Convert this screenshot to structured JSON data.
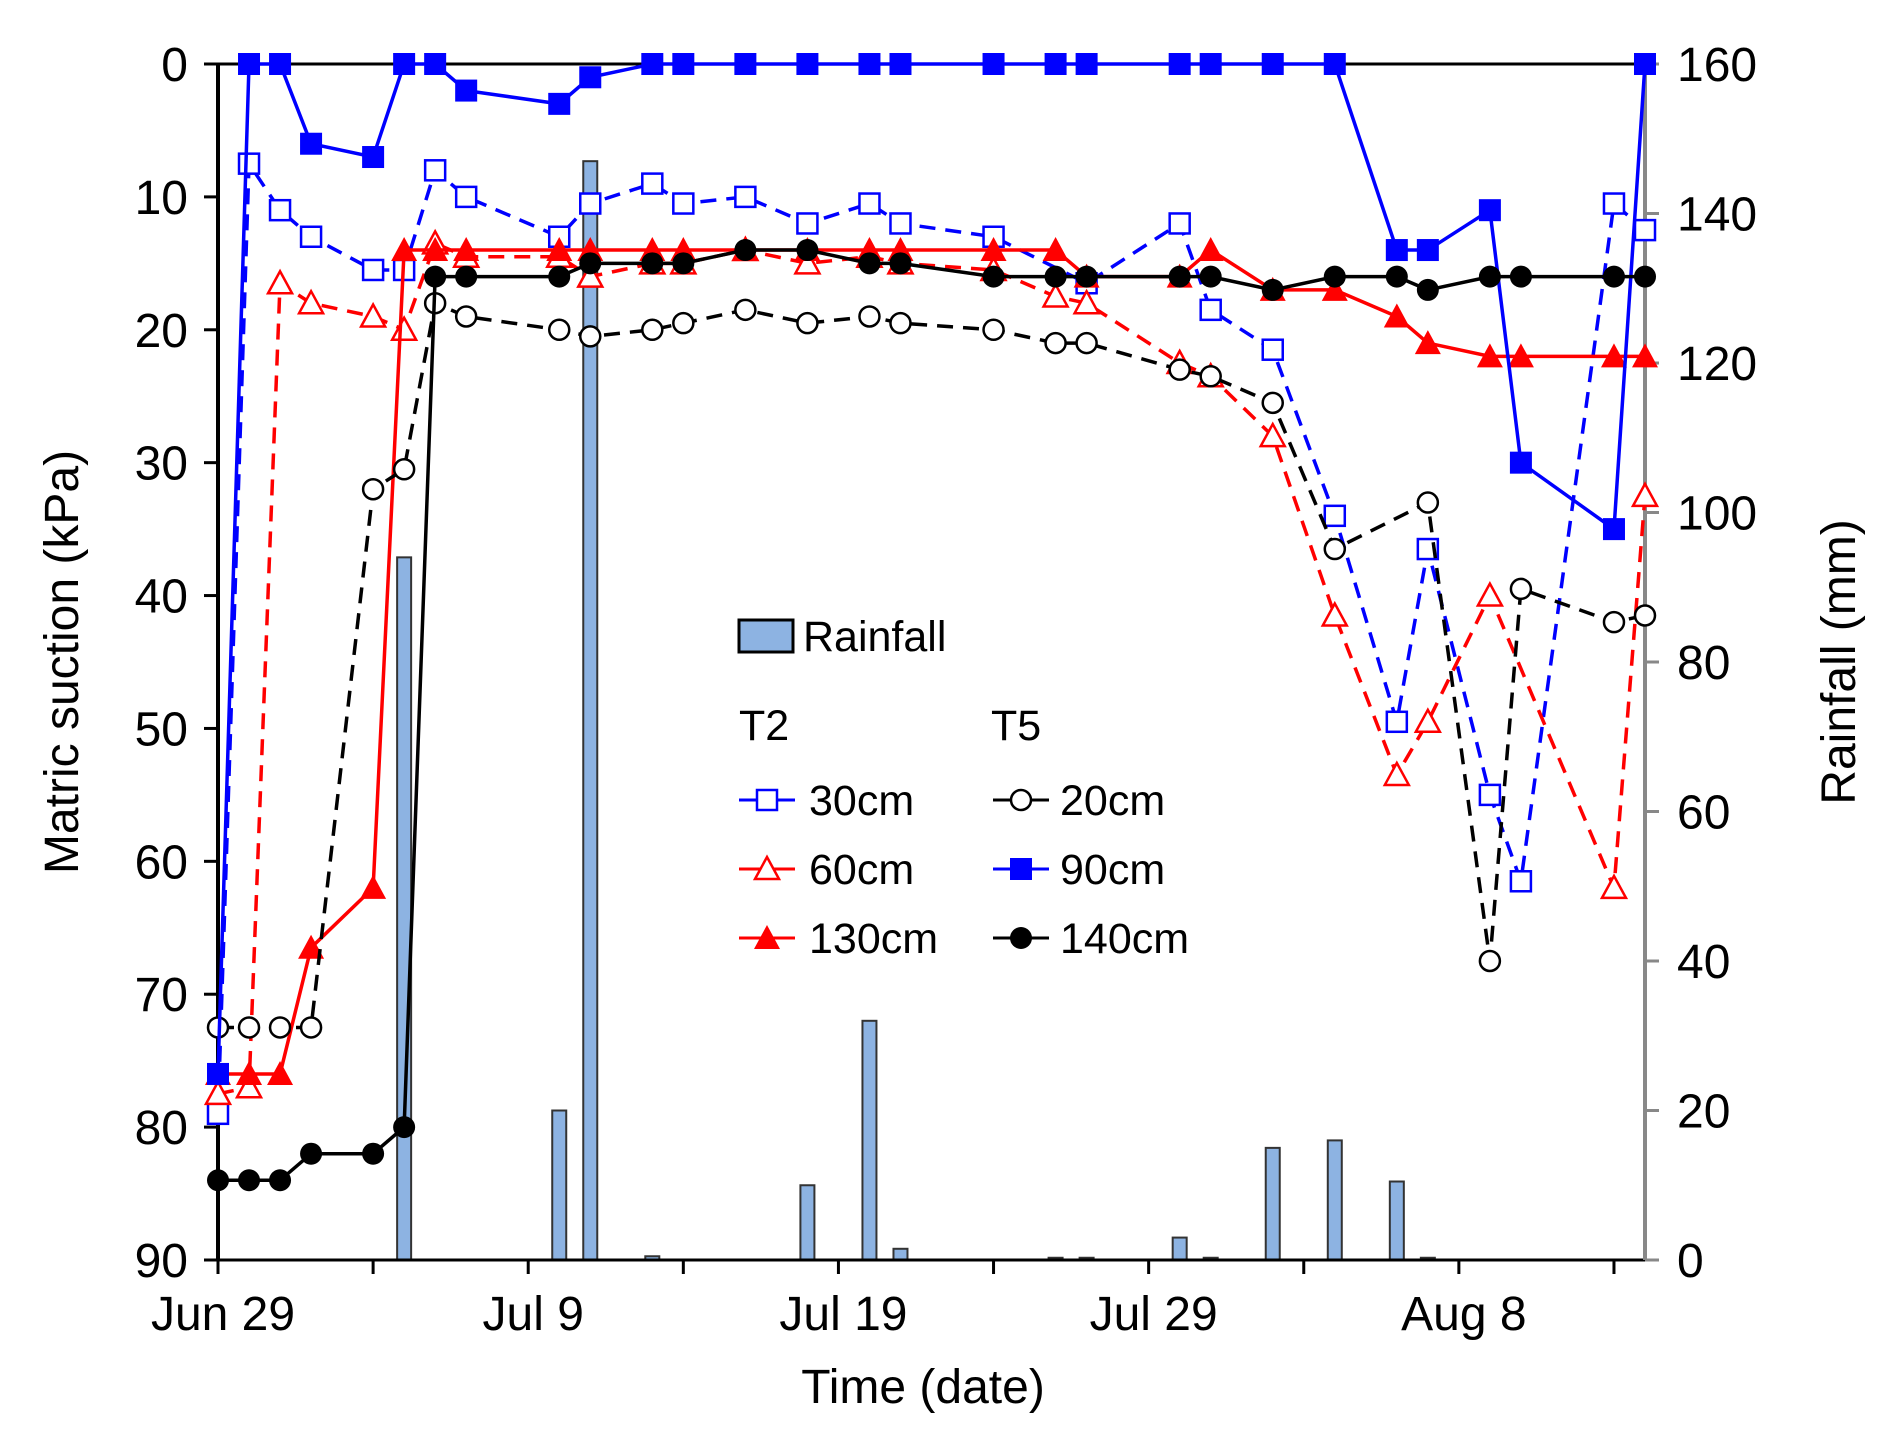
{
  "chart_data": {
    "type": "line",
    "xlabel": "Time (date)",
    "ylabel": "Matric suction (kPa)",
    "y2label": "Rainfall (mm)",
    "ylim": [
      90,
      0
    ],
    "y2lim": [
      0,
      160
    ],
    "xlim_days": [
      0,
      46
    ],
    "x_unit": "days since Jun 29",
    "yticks": [
      0,
      10,
      20,
      30,
      40,
      50,
      60,
      70,
      80,
      90
    ],
    "y2ticks": [
      0,
      20,
      40,
      60,
      80,
      100,
      120,
      140,
      160
    ],
    "xtick_days": [
      0,
      5,
      10,
      15,
      20,
      25,
      30,
      35,
      40,
      45
    ],
    "xtick_labels": [
      {
        "day": 0,
        "label": "Jun 29"
      },
      {
        "day": 10,
        "label": "Jul 9"
      },
      {
        "day": 20,
        "label": "Jul 19"
      },
      {
        "day": 30,
        "label": "Jul 29"
      },
      {
        "day": 40,
        "label": "Aug 8"
      }
    ],
    "legend": {
      "rainfall": "Rainfall",
      "group1": "T2",
      "group2": "T5",
      "placement": "center"
    },
    "rainfall": {
      "name": "Rainfall",
      "color": "#8db3e2",
      "days": [
        6,
        11,
        12,
        14,
        19,
        21,
        22,
        27,
        28,
        31,
        32,
        34,
        36,
        38,
        39
      ],
      "values": [
        94,
        20,
        147,
        0.5,
        10,
        32,
        1.5,
        0.3,
        0.3,
        3,
        0.3,
        15,
        16,
        10.5,
        0.3
      ]
    },
    "series": [
      {
        "name": "30cm",
        "group": "T2",
        "color": "#0000ff",
        "marker": "square-open",
        "dash": true,
        "x": [
          0,
          1,
          2,
          3,
          5,
          6,
          7,
          8,
          11,
          12,
          14,
          15,
          17,
          19,
          21,
          22,
          25,
          28,
          31,
          32,
          34,
          36,
          38,
          39,
          41,
          42,
          45,
          46
        ],
        "y": [
          79,
          7.5,
          11,
          13,
          15.5,
          15.5,
          8,
          10,
          13,
          10.5,
          9,
          10.5,
          10,
          12,
          10.5,
          12,
          13,
          16.5,
          12,
          18.5,
          21.5,
          34,
          49.5,
          36.5,
          55,
          61.5,
          10.5,
          12.5
        ]
      },
      {
        "name": "60cm",
        "group": "T2",
        "color": "#ff0000",
        "marker": "triangle-open",
        "dash": true,
        "x": [
          0,
          1,
          2,
          3,
          5,
          6,
          7,
          8,
          11,
          12,
          14,
          15,
          17,
          19,
          21,
          22,
          25,
          27,
          28,
          31,
          32,
          34,
          36,
          38,
          39,
          41,
          45,
          46
        ],
        "y": [
          77.5,
          77,
          16.5,
          18,
          19,
          20,
          13.5,
          14.5,
          14.5,
          16,
          15,
          15,
          14,
          15,
          14.5,
          15,
          15.5,
          17.5,
          18,
          22.5,
          23.5,
          28,
          41.5,
          53.5,
          49.5,
          40,
          62,
          32.5
        ]
      },
      {
        "name": "130cm",
        "group": "T2",
        "color": "#ff0000",
        "marker": "triangle-filled",
        "dash": false,
        "x": [
          0,
          1,
          2,
          3,
          5,
          6,
          7,
          8,
          11,
          12,
          14,
          15,
          17,
          19,
          21,
          22,
          25,
          27,
          28,
          31,
          32,
          34,
          36,
          38,
          39,
          41,
          42,
          45,
          46
        ],
        "y": [
          76,
          76,
          76,
          66.5,
          62,
          14,
          14,
          14,
          14,
          14,
          14,
          14,
          14,
          14,
          14,
          14,
          14,
          14,
          16,
          16,
          14,
          17,
          17,
          19,
          21,
          22,
          22,
          22,
          22
        ]
      },
      {
        "name": "20cm",
        "group": "T5",
        "color": "#000000",
        "marker": "circle-open",
        "dash": true,
        "x": [
          0,
          1,
          2,
          3,
          5,
          6,
          7,
          8,
          11,
          12,
          14,
          15,
          17,
          19,
          21,
          22,
          25,
          27,
          28,
          31,
          32,
          34,
          36,
          39,
          41,
          42,
          45,
          46
        ],
        "y": [
          72.5,
          72.5,
          72.5,
          72.5,
          32,
          30.5,
          18,
          19,
          20,
          20.5,
          20,
          19.5,
          18.5,
          19.5,
          19,
          19.5,
          20,
          21,
          21,
          23,
          23.5,
          25.5,
          36.5,
          33,
          67.5,
          39.5,
          42,
          41.5
        ]
      },
      {
        "name": "90cm",
        "group": "T5",
        "color": "#0000ff",
        "marker": "square-filled",
        "dash": false,
        "x": [
          0,
          1,
          2,
          3,
          5,
          6,
          7,
          8,
          11,
          12,
          14,
          15,
          17,
          19,
          21,
          22,
          25,
          27,
          28,
          31,
          32,
          34,
          36,
          38,
          39,
          41,
          42,
          45,
          46
        ],
        "y": [
          76,
          0,
          0,
          6,
          7,
          0,
          0,
          2,
          3,
          1,
          0,
          0,
          0,
          0,
          0,
          0,
          0,
          0,
          0,
          0,
          0,
          0,
          0,
          14,
          14,
          11,
          30,
          35,
          0
        ]
      },
      {
        "name": "140cm",
        "group": "T5",
        "color": "#000000",
        "marker": "circle-filled",
        "dash": false,
        "x": [
          0,
          1,
          2,
          3,
          5,
          6,
          7,
          8,
          11,
          12,
          14,
          15,
          17,
          19,
          21,
          22,
          25,
          27,
          28,
          31,
          32,
          34,
          36,
          38,
          39,
          41,
          42,
          45,
          46
        ],
        "y": [
          84,
          84,
          84,
          82,
          82,
          80,
          16,
          16,
          16,
          15,
          15,
          15,
          14,
          14,
          15,
          15,
          16,
          16,
          16,
          16,
          16,
          17,
          16,
          16,
          17,
          16,
          16,
          16,
          16
        ]
      }
    ]
  }
}
